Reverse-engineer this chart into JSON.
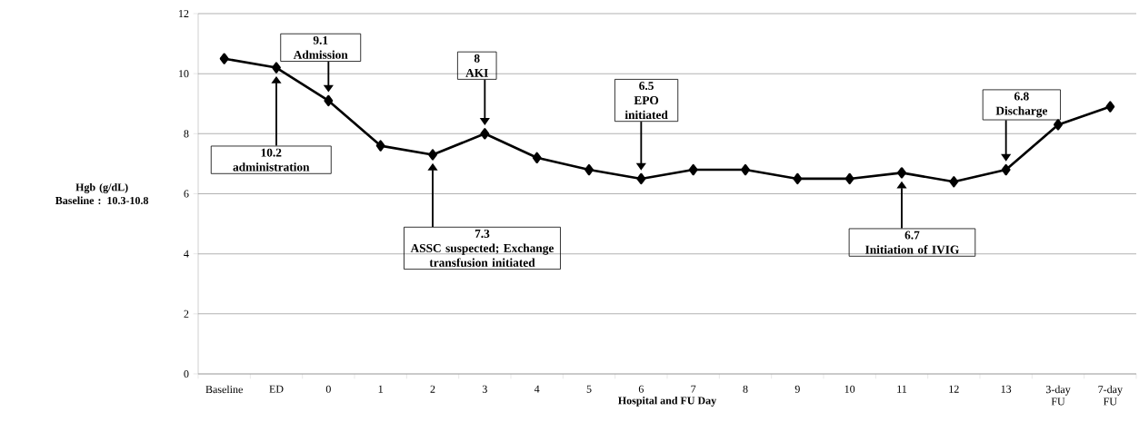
{
  "chart_data": {
    "type": "line",
    "xlabel": "Hospital and FU Day",
    "ylabel": "Hgb (g/dL) Baseline : 10.3-10.8",
    "categories": [
      "Baseline",
      "ED",
      "0",
      "1",
      "2",
      "3",
      "4",
      "5",
      "6",
      "7",
      "8",
      "9",
      "10",
      "11",
      "12",
      "13",
      "3-day FU",
      "7-day FU"
    ],
    "series": [
      {
        "color": "#000000",
        "values": [
          10.5,
          10.2,
          9.1,
          7.6,
          7.3,
          8,
          7.2,
          6.8,
          6.5,
          6.8,
          6.8,
          6.5,
          6.5,
          6.7,
          6.4,
          6.8,
          8.3,
          8.9
        ]
      }
    ],
    "ylim": [
      0,
      12
    ],
    "yticks": [
      0,
      2,
      4,
      6,
      8,
      10,
      12
    ],
    "grid": "y",
    "marker": "diamond",
    "line_style": "solid",
    "annotations": [
      "10.2",
      "administration",
      "9.1",
      "Admission",
      "7.3",
      "ASSC suspected; Exchange transfusion initiated",
      "8",
      "AKI",
      "6.5",
      "EPO initiated",
      "6.7",
      "Initiation of IVIG",
      "6.8",
      "Discharge"
    ]
  }
}
